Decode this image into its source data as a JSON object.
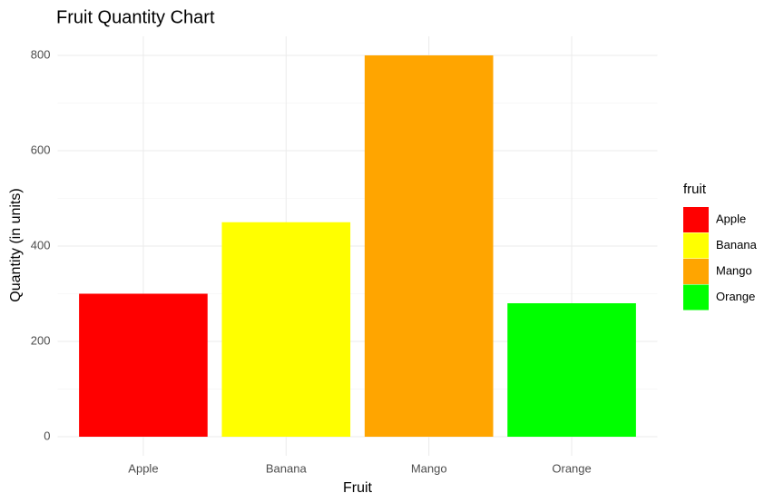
{
  "chart_data": {
    "type": "bar",
    "title": "Fruit Quantity Chart",
    "x_label": "Fruit",
    "y_label": "Quantity (in units)",
    "categories": [
      "Apple",
      "Banana",
      "Mango",
      "Orange"
    ],
    "values": [
      300,
      450,
      800,
      280
    ],
    "colors": [
      "#ff0000",
      "#ffff00",
      "#ffa500",
      "#00ff00"
    ],
    "legend_title": "fruit",
    "legend_position": "right",
    "ylim": [
      -40,
      840
    ],
    "yticks": [
      0,
      200,
      400,
      600,
      800
    ],
    "minor_yticks": [
      100,
      300,
      500,
      700
    ],
    "grid": true
  }
}
